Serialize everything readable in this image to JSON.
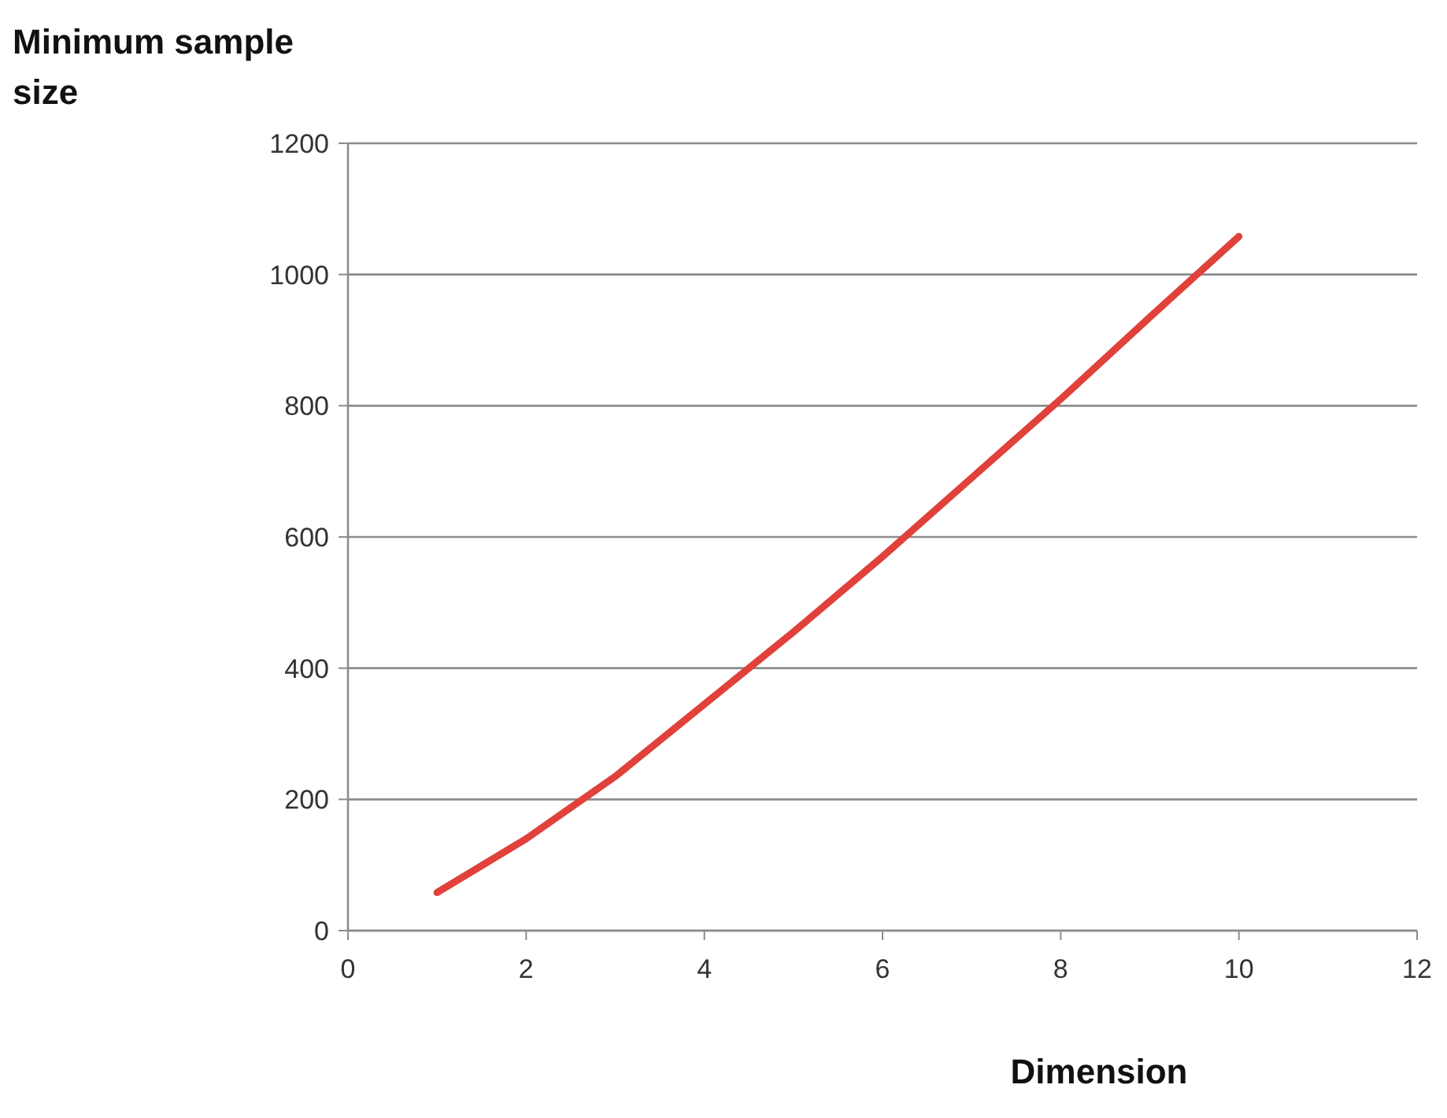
{
  "chart_data": {
    "type": "line",
    "ylabel": "Minimum sample size",
    "xlabel": "Dimension",
    "x": [
      1,
      2,
      3,
      4,
      5,
      6,
      7,
      8,
      9,
      10
    ],
    "series": [
      {
        "color": "#e0413a",
        "values": [
          58,
          140,
          235,
          345,
          455,
          570,
          690,
          810,
          935,
          1058
        ]
      }
    ],
    "xlim": [
      0,
      12
    ],
    "xticks": [
      0,
      2,
      4,
      6,
      8,
      10,
      12
    ],
    "ylim": [
      0,
      1200
    ],
    "yticks": [
      0,
      200,
      400,
      600,
      800,
      1000,
      1200
    ],
    "grid": "y",
    "marker": "none",
    "line_style": "solid"
  }
}
